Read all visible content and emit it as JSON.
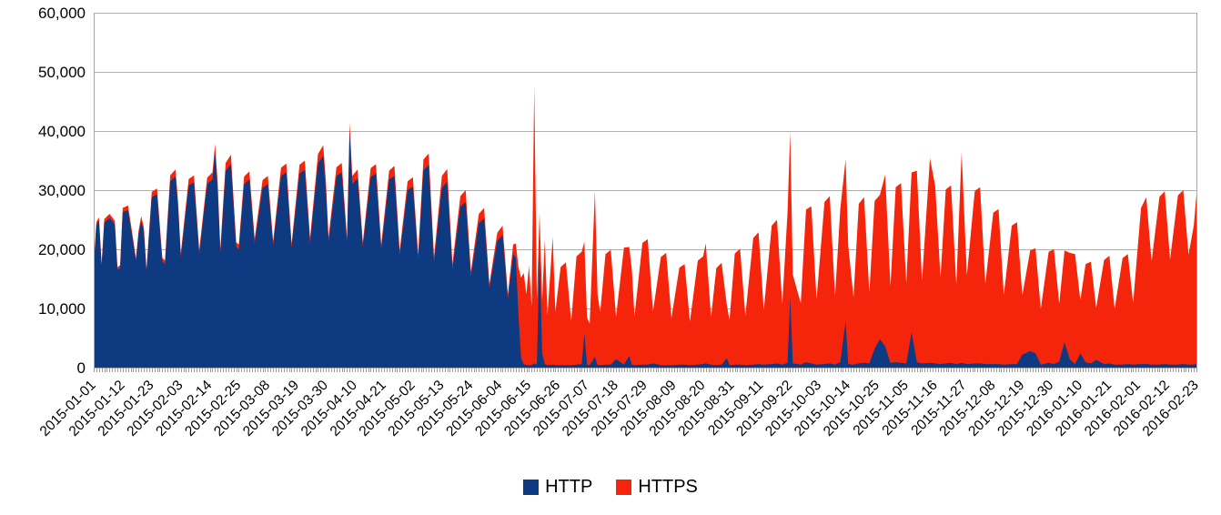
{
  "chart_data": {
    "type": "area",
    "stacked": true,
    "title": "",
    "xlabel": "",
    "ylabel": "",
    "grid": "horizontal",
    "legend_position": "bottom-center",
    "colors": {
      "http": "#0D3A80",
      "https": "#F5250C",
      "gridline": "#AFAFAF",
      "axis": "#A6A6A6",
      "tick": "#999999",
      "text": "#000000"
    },
    "y_axis": {
      "min": 0,
      "max": 60000,
      "step": 10000,
      "tick_values": [
        0,
        10000,
        20000,
        30000,
        40000,
        50000,
        60000
      ],
      "tick_labels": [
        "0",
        "10,000",
        "20,000",
        "30,000",
        "40,000",
        "50,000",
        "60,000"
      ]
    },
    "x_axis": {
      "start_date": "2015-01-01",
      "end_date": "2016-02-23",
      "label_interval_days": 11,
      "minor_tick_interval_days": 1,
      "total_days": 418,
      "tick_labels": [
        "2015-01-01",
        "2015-01-12",
        "2015-01-23",
        "2015-02-03",
        "2015-02-14",
        "2015-02-25",
        "2015-03-08",
        "2015-03-19",
        "2015-03-30",
        "2015-04-10",
        "2015-04-21",
        "2015-05-02",
        "2015-05-13",
        "2015-05-24",
        "2015-06-04",
        "2015-06-15",
        "2015-06-26",
        "2015-07-07",
        "2015-07-18",
        "2015-07-29",
        "2015-08-09",
        "2015-08-20",
        "2015-08-31",
        "2015-09-11",
        "2015-09-22",
        "2015-10-03",
        "2015-10-14",
        "2015-10-25",
        "2015-11-05",
        "2015-11-16",
        "2015-11-27",
        "2015-12-08",
        "2015-12-19",
        "2015-12-30",
        "2016-01-10",
        "2016-01-21",
        "2016-02-01",
        "2016-02-12",
        "2016-02-23"
      ]
    },
    "series": [
      {
        "name": "HTTP",
        "color": "#0D3A80"
      },
      {
        "name": "HTTPS",
        "color": "#F5250C"
      }
    ],
    "points_format": [
      "day_offset_from_2015-01-01",
      "http_requests",
      "https_requests"
    ],
    "points": [
      [
        0,
        17000,
        400
      ],
      [
        1,
        24000,
        600
      ],
      [
        2,
        24800,
        600
      ],
      [
        3,
        17200,
        400
      ],
      [
        4,
        24500,
        600
      ],
      [
        6,
        25300,
        700
      ],
      [
        8,
        24200,
        600
      ],
      [
        9,
        16500,
        500
      ],
      [
        10,
        16800,
        500
      ],
      [
        11,
        26300,
        700
      ],
      [
        13,
        26600,
        800
      ],
      [
        15,
        21000,
        600
      ],
      [
        16,
        18000,
        500
      ],
      [
        17,
        22500,
        600
      ],
      [
        18,
        24800,
        800
      ],
      [
        19,
        23000,
        700
      ],
      [
        20,
        16200,
        500
      ],
      [
        22,
        28800,
        900
      ],
      [
        24,
        29300,
        1000
      ],
      [
        26,
        18000,
        600
      ],
      [
        27,
        17500,
        600
      ],
      [
        29,
        31500,
        1000
      ],
      [
        31,
        32300,
        1200
      ],
      [
        32,
        27000,
        900
      ],
      [
        33,
        18600,
        700
      ],
      [
        36,
        30800,
        1100
      ],
      [
        38,
        31300,
        1200
      ],
      [
        40,
        19200,
        700
      ],
      [
        43,
        31000,
        1100
      ],
      [
        45,
        31800,
        1200
      ],
      [
        46,
        36300,
        1500
      ],
      [
        47,
        30000,
        1100
      ],
      [
        48,
        19400,
        700
      ],
      [
        50,
        33200,
        1400
      ],
      [
        52,
        34400,
        1600
      ],
      [
        54,
        20400,
        800
      ],
      [
        55,
        20000,
        800
      ],
      [
        57,
        31000,
        1300
      ],
      [
        59,
        31800,
        1400
      ],
      [
        61,
        21000,
        800
      ],
      [
        64,
        30400,
        1300
      ],
      [
        66,
        31000,
        1400
      ],
      [
        68,
        20600,
        800
      ],
      [
        71,
        32400,
        1400
      ],
      [
        73,
        33000,
        1500
      ],
      [
        75,
        20200,
        800
      ],
      [
        78,
        32800,
        1500
      ],
      [
        80,
        33400,
        1600
      ],
      [
        82,
        21000,
        900
      ],
      [
        85,
        34500,
        1600
      ],
      [
        87,
        35800,
        1800
      ],
      [
        88,
        30000,
        1500
      ],
      [
        89,
        21200,
        900
      ],
      [
        92,
        32400,
        1500
      ],
      [
        94,
        33000,
        1600
      ],
      [
        96,
        21000,
        900
      ],
      [
        97,
        39800,
        1600
      ],
      [
        98,
        31000,
        1400
      ],
      [
        100,
        32000,
        1500
      ],
      [
        102,
        20400,
        800
      ],
      [
        105,
        32200,
        1500
      ],
      [
        107,
        32800,
        1600
      ],
      [
        109,
        20000,
        800
      ],
      [
        112,
        31800,
        1500
      ],
      [
        114,
        32400,
        1700
      ],
      [
        116,
        19000,
        800
      ],
      [
        119,
        30000,
        1500
      ],
      [
        121,
        30600,
        1600
      ],
      [
        123,
        18400,
        800
      ],
      [
        125,
        33400,
        1800
      ],
      [
        127,
        34200,
        2000
      ],
      [
        129,
        17800,
        900
      ],
      [
        132,
        30400,
        2000
      ],
      [
        134,
        31400,
        2200
      ],
      [
        136,
        16600,
        1000
      ],
      [
        139,
        27200,
        1800
      ],
      [
        141,
        28000,
        2000
      ],
      [
        143,
        15400,
        900
      ],
      [
        146,
        24400,
        1600
      ],
      [
        148,
        25200,
        1800
      ],
      [
        150,
        13400,
        800
      ],
      [
        153,
        21400,
        1400
      ],
      [
        155,
        22400,
        1600
      ],
      [
        157,
        11600,
        800
      ],
      [
        159,
        19200,
        1600
      ],
      [
        160,
        18600,
        2400
      ],
      [
        161,
        9000,
        8000
      ],
      [
        162,
        1600,
        13600
      ],
      [
        163,
        600,
        15400
      ],
      [
        164,
        400,
        12000
      ],
      [
        165,
        400,
        16800
      ],
      [
        166,
        400,
        10000
      ],
      [
        167,
        700,
        46800
      ],
      [
        168,
        500,
        11000
      ],
      [
        169,
        19600,
        6600
      ],
      [
        170,
        2400,
        9000
      ],
      [
        171,
        600,
        21000
      ],
      [
        172,
        400,
        8400
      ],
      [
        174,
        500,
        21600
      ],
      [
        175,
        400,
        9000
      ],
      [
        177,
        400,
        16600
      ],
      [
        179,
        400,
        17400
      ],
      [
        181,
        400,
        7400
      ],
      [
        183,
        500,
        18300
      ],
      [
        185,
        600,
        19000
      ],
      [
        186,
        5800,
        15500
      ],
      [
        187,
        500,
        8000
      ],
      [
        188,
        400,
        7000
      ],
      [
        190,
        1800,
        28000
      ],
      [
        191,
        400,
        12000
      ],
      [
        192,
        400,
        9000
      ],
      [
        194,
        500,
        18700
      ],
      [
        196,
        500,
        19400
      ],
      [
        198,
        1400,
        7200
      ],
      [
        201,
        500,
        19800
      ],
      [
        203,
        2000,
        18400
      ],
      [
        204,
        500,
        16000
      ],
      [
        205,
        400,
        8300
      ],
      [
        208,
        500,
        20600
      ],
      [
        210,
        500,
        21200
      ],
      [
        212,
        700,
        8800
      ],
      [
        215,
        400,
        18300
      ],
      [
        217,
        400,
        19000
      ],
      [
        219,
        400,
        8000
      ],
      [
        222,
        500,
        16400
      ],
      [
        224,
        500,
        17000
      ],
      [
        226,
        400,
        7400
      ],
      [
        229,
        500,
        17600
      ],
      [
        231,
        600,
        18200
      ],
      [
        232,
        700,
        20300
      ],
      [
        234,
        500,
        8000
      ],
      [
        236,
        400,
        16400
      ],
      [
        238,
        500,
        17200
      ],
      [
        240,
        1600,
        9000
      ],
      [
        241,
        400,
        7600
      ],
      [
        243,
        500,
        18800
      ],
      [
        245,
        500,
        19600
      ],
      [
        247,
        400,
        8400
      ],
      [
        250,
        500,
        21400
      ],
      [
        252,
        600,
        22300
      ],
      [
        254,
        500,
        9200
      ],
      [
        257,
        600,
        23400
      ],
      [
        259,
        700,
        24300
      ],
      [
        261,
        500,
        10200
      ],
      [
        263,
        800,
        25500
      ],
      [
        264,
        11800,
        28000
      ],
      [
        265,
        700,
        15000
      ],
      [
        268,
        500,
        10400
      ],
      [
        270,
        900,
        25800
      ],
      [
        272,
        700,
        26600
      ],
      [
        274,
        500,
        11000
      ],
      [
        277,
        600,
        27400
      ],
      [
        279,
        700,
        28300
      ],
      [
        281,
        500,
        11600
      ],
      [
        283,
        900,
        26000
      ],
      [
        285,
        7800,
        27400
      ],
      [
        286,
        600,
        20000
      ],
      [
        288,
        500,
        11400
      ],
      [
        290,
        700,
        27000
      ],
      [
        292,
        800,
        28000
      ],
      [
        294,
        700,
        12000
      ],
      [
        296,
        3200,
        25000
      ],
      [
        298,
        4800,
        24400
      ],
      [
        300,
        3600,
        29000
      ],
      [
        302,
        800,
        13000
      ],
      [
        304,
        900,
        29600
      ],
      [
        306,
        800,
        30400
      ],
      [
        308,
        700,
        13600
      ],
      [
        310,
        6000,
        27000
      ],
      [
        312,
        900,
        32400
      ],
      [
        314,
        700,
        14000
      ],
      [
        317,
        800,
        34600
      ],
      [
        319,
        700,
        30000
      ],
      [
        321,
        600,
        14600
      ],
      [
        323,
        700,
        29400
      ],
      [
        325,
        800,
        30000
      ],
      [
        327,
        600,
        13400
      ],
      [
        329,
        800,
        35600
      ],
      [
        331,
        600,
        15000
      ],
      [
        334,
        700,
        29200
      ],
      [
        336,
        700,
        29800
      ],
      [
        338,
        600,
        13600
      ],
      [
        341,
        600,
        25600
      ],
      [
        343,
        600,
        26200
      ],
      [
        345,
        500,
        11800
      ],
      [
        348,
        600,
        23400
      ],
      [
        350,
        600,
        24000
      ],
      [
        352,
        2200,
        10000
      ],
      [
        355,
        2800,
        17000
      ],
      [
        357,
        2400,
        17800
      ],
      [
        359,
        500,
        9400
      ],
      [
        362,
        800,
        18800
      ],
      [
        364,
        600,
        19400
      ],
      [
        366,
        1000,
        9800
      ],
      [
        368,
        4300,
        15500
      ],
      [
        370,
        1400,
        18000
      ],
      [
        372,
        600,
        18600
      ],
      [
        374,
        2400,
        9000
      ],
      [
        376,
        900,
        16600
      ],
      [
        378,
        700,
        17200
      ],
      [
        380,
        1300,
        8800
      ],
      [
        383,
        600,
        17600
      ],
      [
        385,
        700,
        18200
      ],
      [
        387,
        500,
        9400
      ],
      [
        390,
        500,
        18000
      ],
      [
        392,
        600,
        18600
      ],
      [
        394,
        500,
        10400
      ],
      [
        397,
        600,
        26400
      ],
      [
        399,
        600,
        28200
      ],
      [
        401,
        500,
        17400
      ],
      [
        404,
        500,
        28400
      ],
      [
        406,
        600,
        29200
      ],
      [
        408,
        500,
        17800
      ],
      [
        411,
        500,
        28600
      ],
      [
        413,
        600,
        29400
      ],
      [
        415,
        500,
        18600
      ],
      [
        417,
        500,
        23500
      ],
      [
        418,
        600,
        28600
      ]
    ]
  },
  "legend": {
    "http_label": "HTTP",
    "https_label": "HTTPS"
  }
}
